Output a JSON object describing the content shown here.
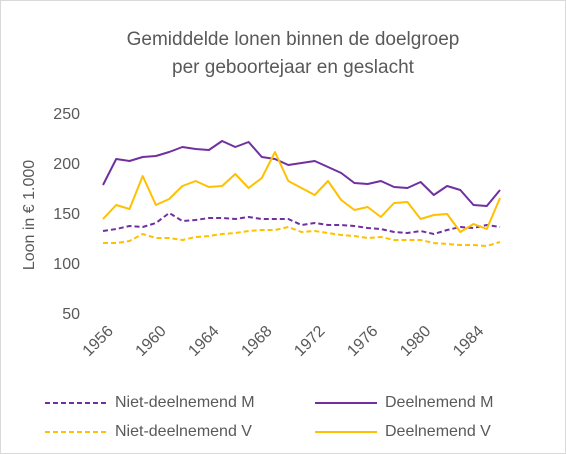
{
  "chart_data": {
    "type": "line",
    "title": [
      "Gemiddelde lonen binnen de doelgroep",
      "per geboortejaar en geslacht"
    ],
    "y_label": "Loon in € 1.000",
    "x": [
      1956,
      1957,
      1958,
      1959,
      1960,
      1961,
      1962,
      1963,
      1964,
      1965,
      1966,
      1967,
      1968,
      1969,
      1970,
      1971,
      1972,
      1973,
      1974,
      1975,
      1976,
      1977,
      1978,
      1979,
      1980,
      1981,
      1982,
      1983,
      1984,
      1985,
      1986
    ],
    "xlim": [
      1956,
      1986
    ],
    "xticks": [
      1956,
      1960,
      1964,
      1968,
      1972,
      1976,
      1980,
      1984
    ],
    "ylim": [
      50,
      250
    ],
    "yticks": [
      50,
      100,
      150,
      200,
      250
    ],
    "grid": false,
    "legend": "bottom",
    "series": [
      {
        "name": "Niet-deelnemend M",
        "color": "#7030a0",
        "dash": true,
        "values": [
          134,
          136,
          139,
          138,
          142,
          152,
          144,
          145,
          147,
          147,
          146,
          148,
          146,
          146,
          146,
          140,
          142,
          140,
          140,
          139,
          137,
          136,
          133,
          132,
          134,
          131,
          135,
          138,
          137,
          140,
          138
        ]
      },
      {
        "name": "Deelnemend M",
        "color": "#7030a0",
        "dash": false,
        "values": [
          180,
          206,
          204,
          208,
          209,
          213,
          218,
          216,
          215,
          224,
          218,
          223,
          208,
          206,
          200,
          202,
          204,
          198,
          192,
          182,
          181,
          184,
          178,
          177,
          183,
          170,
          179,
          175,
          160,
          159,
          175
        ]
      },
      {
        "name": "Niet-deelnemend V",
        "color": "#ffc000",
        "dash": true,
        "values": [
          122,
          122,
          124,
          131,
          127,
          127,
          125,
          128,
          129,
          131,
          132,
          134,
          135,
          135,
          138,
          133,
          134,
          132,
          130,
          129,
          127,
          128,
          125,
          125,
          125,
          122,
          121,
          120,
          120,
          119,
          123
        ]
      },
      {
        "name": "Deelnemend V",
        "color": "#ffc000",
        "dash": false,
        "values": [
          146,
          160,
          156,
          189,
          160,
          166,
          179,
          184,
          178,
          179,
          191,
          177,
          187,
          213,
          184,
          177,
          170,
          184,
          165,
          155,
          158,
          148,
          162,
          163,
          146,
          150,
          151,
          133,
          141,
          136,
          167
        ]
      }
    ]
  }
}
